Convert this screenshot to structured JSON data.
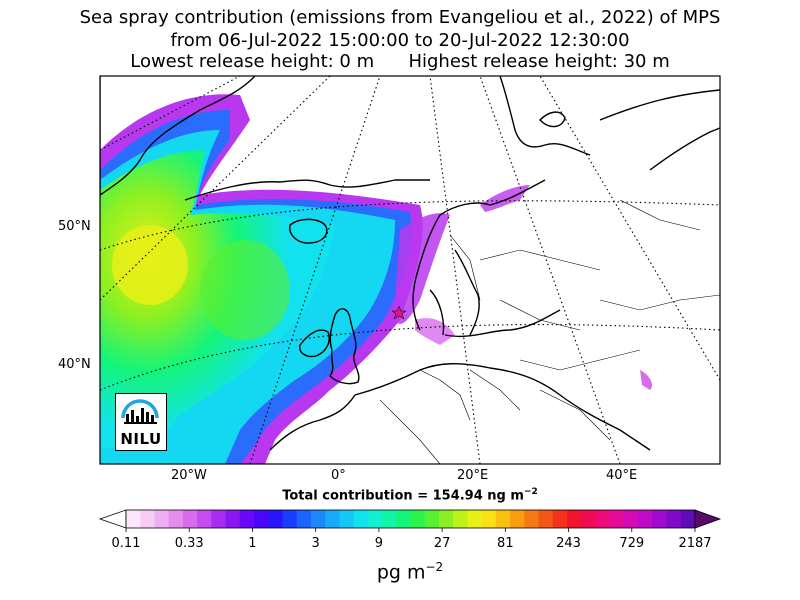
{
  "title": {
    "line1": "Sea spray contribution (emissions from Evangeliou et al., 2022) of MPS",
    "line2": "from 06-Jul-2022 15:00:00 to 20-Jul-2022 12:30:00",
    "line3": "Lowest release height: 0 m      Highest release height: 30 m"
  },
  "map": {
    "lat_labels": [
      "50°N",
      "40°N"
    ],
    "lon_labels": [
      "20°W",
      "0°",
      "20°E",
      "40°E"
    ],
    "total_contribution": "Total contribution = 154.94 ng m",
    "total_contribution_exp": "−2"
  },
  "logo": {
    "text": "NILU"
  },
  "colorbar": {
    "tick_labels": [
      "0.11",
      "0.33",
      "1",
      "3",
      "9",
      "27",
      "81",
      "243",
      "729",
      "2187"
    ],
    "unit": "pg m",
    "unit_exp": "−2",
    "colors": [
      "#fbe6fb",
      "#f7cdf6",
      "#efb0f1",
      "#e58cef",
      "#d96bef",
      "#c44cf0",
      "#a92df0",
      "#8a16f2",
      "#6a08f5",
      "#4a06f8",
      "#2a14fa",
      "#1a3cfb",
      "#1c64fb",
      "#1b88fa",
      "#18aaf8",
      "#14c8f4",
      "#12e2ee",
      "#12f0d2",
      "#12f4a6",
      "#14f47a",
      "#2cf24e",
      "#58f030",
      "#8cf022",
      "#bef21a",
      "#e8f018",
      "#fae014",
      "#fac010",
      "#f89e10",
      "#f67a12",
      "#f45616",
      "#f2321e",
      "#f0142e",
      "#f00a52",
      "#ee0a78",
      "#e60a9a",
      "#d60ab4",
      "#c00ac8",
      "#a00ad0",
      "#800aca",
      "#600ab8"
    ],
    "under_color": "#ffffff",
    "over_color": "#5a0a6a"
  }
}
